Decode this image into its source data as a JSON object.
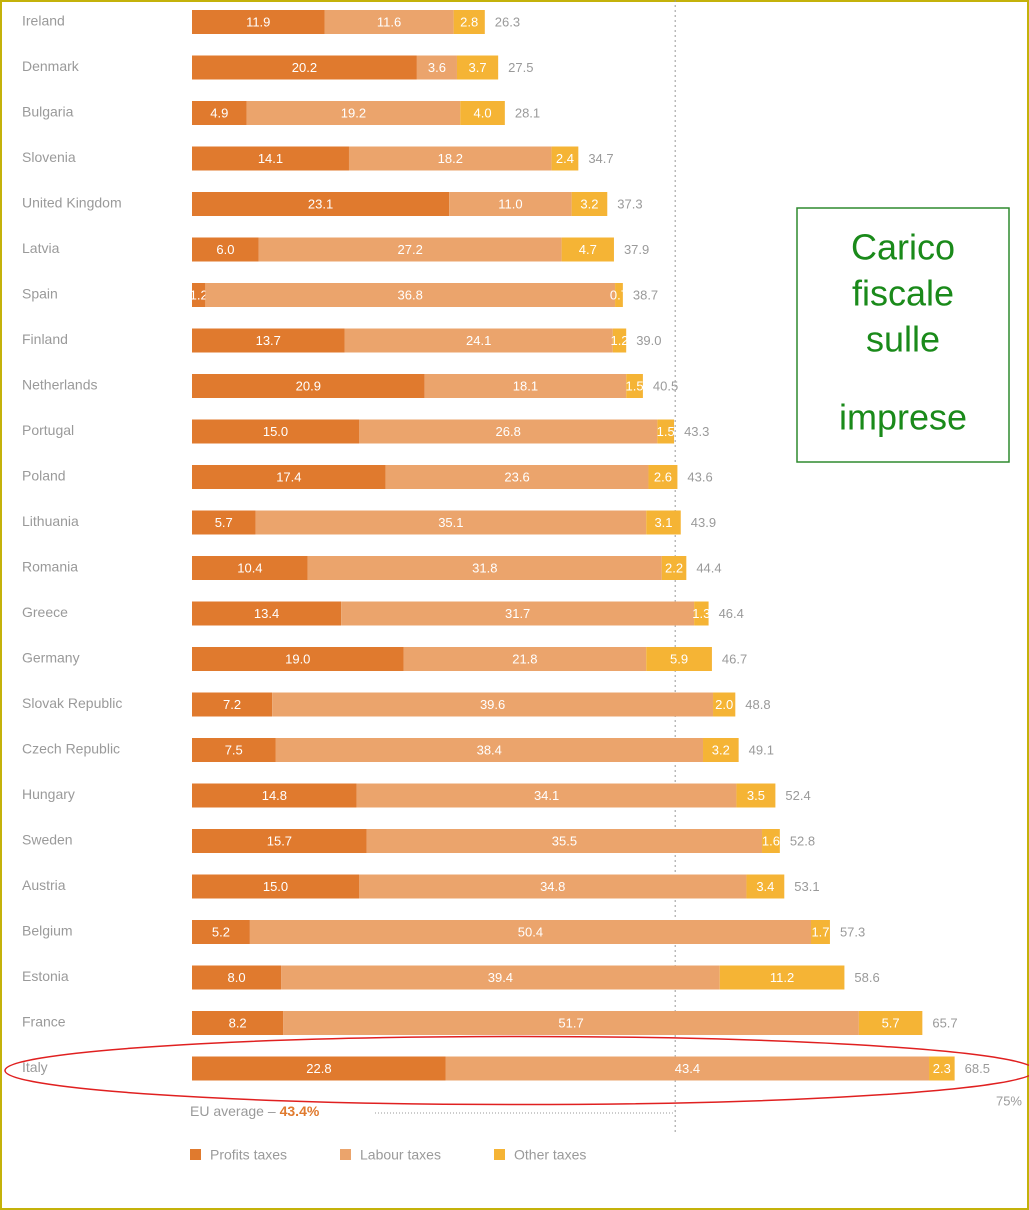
{
  "chart_data": {
    "type": "stacked-bar-horizontal",
    "side_note": [
      "Carico",
      "fiscale",
      "sulle",
      "imprese"
    ],
    "categories": [
      "Ireland",
      "Denmark",
      "Bulgaria",
      "Slovenia",
      "United Kingdom",
      "Latvia",
      "Spain",
      "Finland",
      "Netherlands",
      "Portugal",
      "Poland",
      "Lithuania",
      "Romania",
      "Greece",
      "Germany",
      "Slovak Republic",
      "Czech Republic",
      "Hungary",
      "Sweden",
      "Austria",
      "Belgium",
      "Estonia",
      "France",
      "Italy"
    ],
    "series": [
      {
        "name": "Profits taxes",
        "color": "#e07a2e",
        "values": [
          11.9,
          20.2,
          4.9,
          14.1,
          23.1,
          6.0,
          1.2,
          13.7,
          20.9,
          15.0,
          17.4,
          5.7,
          10.4,
          13.4,
          19.0,
          7.2,
          7.5,
          14.8,
          15.7,
          15.0,
          5.2,
          8.0,
          8.2,
          22.8
        ],
        "value_labels": [
          "11.9",
          "20.2",
          "4.9",
          "14.1",
          "23.1",
          "6.0",
          "1.2",
          "13.7",
          "20.9",
          "15.0",
          "17.4",
          "5.7",
          "10.4",
          "13.4",
          "19.0",
          "7.2",
          "7.5",
          "14.8",
          "15.7",
          "15.0",
          "5.2",
          "8.0",
          "8.2",
          "22.8"
        ]
      },
      {
        "name": "Labour taxes",
        "color": "#eba46c",
        "values": [
          11.6,
          3.6,
          19.2,
          18.2,
          11.0,
          27.2,
          36.8,
          24.1,
          18.1,
          26.8,
          23.6,
          35.1,
          31.8,
          31.7,
          21.8,
          39.6,
          38.4,
          34.1,
          35.5,
          34.8,
          50.4,
          39.4,
          51.7,
          43.4
        ],
        "value_labels": [
          "11.6",
          "3.6",
          "19.2",
          "18.2",
          "11.0",
          "27.2",
          "36.8",
          "24.1",
          "18.1",
          "26.8",
          "23.6",
          "35.1",
          "31.8",
          "31.7",
          "21.8",
          "39.6",
          "38.4",
          "34.1",
          "35.5",
          "34.8",
          "50.4",
          "39.4",
          "51.7",
          "43.4"
        ]
      },
      {
        "name": "Other taxes",
        "color": "#f5b435",
        "values": [
          2.8,
          3.7,
          4.0,
          2.4,
          3.2,
          4.7,
          0.7,
          1.2,
          1.5,
          1.5,
          2.6,
          3.1,
          2.2,
          1.3,
          5.9,
          2.0,
          3.2,
          3.5,
          1.6,
          3.4,
          1.7,
          11.2,
          5.7,
          2.3
        ],
        "value_labels": [
          "2.8",
          "3.7",
          "4.0",
          "2.4",
          "3.2",
          "4.7",
          "0.7",
          "1.2",
          "1.5",
          "1.5",
          "2.6",
          "3.1",
          "2.2",
          "1.3",
          "5.9",
          "2.0",
          "3.2",
          "3.5",
          "1.6",
          "3.4",
          "1.7",
          "11.2",
          "5.7",
          "2.3"
        ]
      }
    ],
    "total_labels": [
      "26.3",
      "27.5",
      "28.1",
      "34.7",
      "37.3",
      "37.9",
      "38.7",
      "39.0",
      "40.5",
      "43.3",
      "43.6",
      "43.9",
      "44.4",
      "46.4",
      "46.7",
      "48.8",
      "49.1",
      "52.4",
      "52.8",
      "53.1",
      "57.3",
      "58.6",
      "65.7",
      "68.5"
    ],
    "xlim": [
      0,
      75
    ],
    "xticks": [
      {
        "value": 75,
        "label": "75%"
      }
    ],
    "reference_line": {
      "value": 43.4,
      "label": "EU average –",
      "value_label": "43.4%"
    },
    "highlight": "Italy"
  }
}
